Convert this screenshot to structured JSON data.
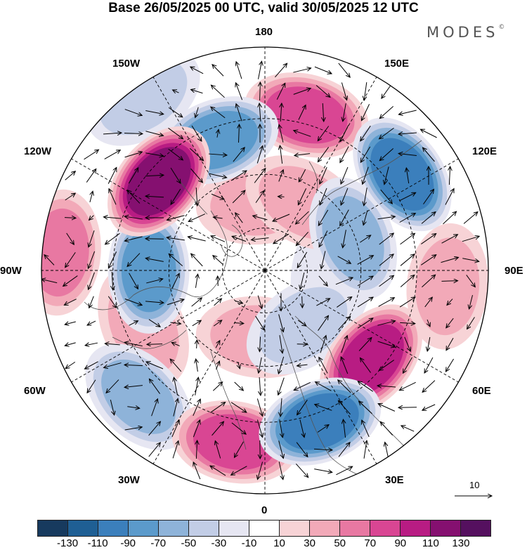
{
  "title": "Base 26/05/2025 00 UTC, valid 30/05/2025 12 UTC",
  "brand": "MODES",
  "brand_mark": "©",
  "longitude_labels": {
    "top": "180",
    "nw": "150W",
    "ne": "150E",
    "wnw": "120W",
    "ene": "120E",
    "w": "90W",
    "e": "90E",
    "wsw": "60W",
    "ese": "60E",
    "sw": "30W",
    "se": "30E",
    "bottom": "0"
  },
  "reference_vector": "10",
  "colorbar": {
    "ticks": [
      "-130",
      "-110",
      "-90",
      "-70",
      "-50",
      "-30",
      "-10",
      "10",
      "30",
      "50",
      "70",
      "90",
      "110",
      "130"
    ],
    "colors": [
      "#173a5e",
      "#1f5f94",
      "#3b7fbc",
      "#5b9acb",
      "#8eb3d9",
      "#c2cde6",
      "#e6e6f2",
      "#ffffff",
      "#f7d3d6",
      "#f2a9b8",
      "#e878a2",
      "#d94693",
      "#b81c83",
      "#851070",
      "#55105f"
    ]
  },
  "anomalies": [
    {
      "lon": 165,
      "r": 0.72,
      "value": 85
    },
    {
      "lon": 125,
      "r": 0.75,
      "value": -100
    },
    {
      "lon": 150,
      "r": 0.35,
      "value": 40
    },
    {
      "lon": 110,
      "r": 0.42,
      "value": -55
    },
    {
      "lon": 85,
      "r": 0.82,
      "value": 40
    },
    {
      "lon": 50,
      "r": 0.62,
      "value": 90
    },
    {
      "lon": 85,
      "r": 0.3,
      "value": -20
    },
    {
      "lon": 20,
      "r": 0.72,
      "value": -95
    },
    {
      "lon": 35,
      "r": 0.3,
      "value": -40
    },
    {
      "lon": -10,
      "r": 0.78,
      "value": 70
    },
    {
      "lon": -5,
      "r": 0.3,
      "value": 30
    },
    {
      "lon": -45,
      "r": 0.8,
      "value": -60
    },
    {
      "lon": -65,
      "r": 0.6,
      "value": 45
    },
    {
      "lon": -90,
      "r": 0.52,
      "value": -70
    },
    {
      "lon": -95,
      "r": 0.92,
      "value": 50
    },
    {
      "lon": -130,
      "r": 0.62,
      "value": 110
    },
    {
      "lon": -160,
      "r": 0.62,
      "value": -85
    },
    {
      "lon": -145,
      "r": 0.95,
      "value": -40
    },
    {
      "lon": -175,
      "r": 0.3,
      "value": 30
    }
  ]
}
